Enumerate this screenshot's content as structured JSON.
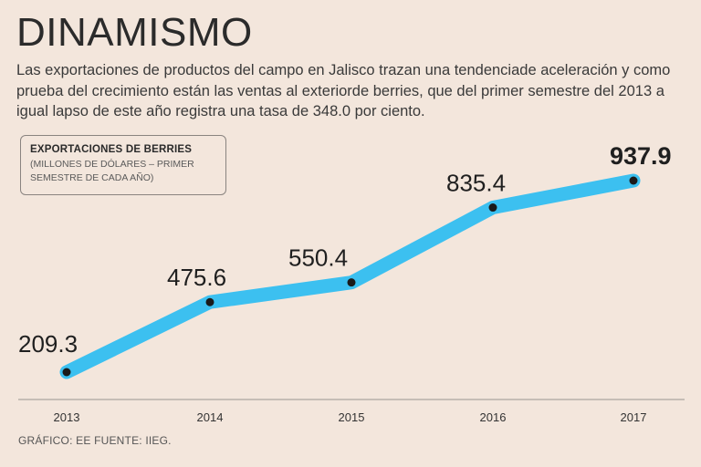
{
  "header": {
    "title": "DINAMISMO",
    "intro": "Las exportaciones de productos del campo en Jalisco trazan una tendenciade aceleración y como prueba del crecimiento están las ventas al exteriorde berries, que del primer semestre del 2013 a igual lapso de este año registra una tasa de 348.0 por ciento."
  },
  "legend": {
    "title": "EXPORTACIONES DE BERRIES",
    "subtitle": "(MILLONES DE DÓLARES – PRIMER SEMESTRE DE CADA AÑO)"
  },
  "footer": {
    "credit": "GRÁFICO: EE  FUENTE: IIEG."
  },
  "colors": {
    "line": "#3cc0f0",
    "marker": "#1a1a1a",
    "background": "#f3e6dc",
    "axis": "#9a9490"
  },
  "chart_data": {
    "type": "line",
    "title": "EXPORTACIONES DE BERRIES",
    "ylabel": "(MILLONES DE DÓLARES – PRIMER SEMESTRE DE CADA AÑO)",
    "xlabel": "",
    "categories": [
      "2013",
      "2014",
      "2015",
      "2016",
      "2017"
    ],
    "values": [
      209.3,
      475.6,
      550.4,
      835.4,
      937.9
    ],
    "labels": [
      "209.3",
      "475.6",
      "550.4",
      "835.4",
      "937.9"
    ],
    "highlight_last": true,
    "ylim": [
      100,
      1000
    ],
    "grid": false
  }
}
